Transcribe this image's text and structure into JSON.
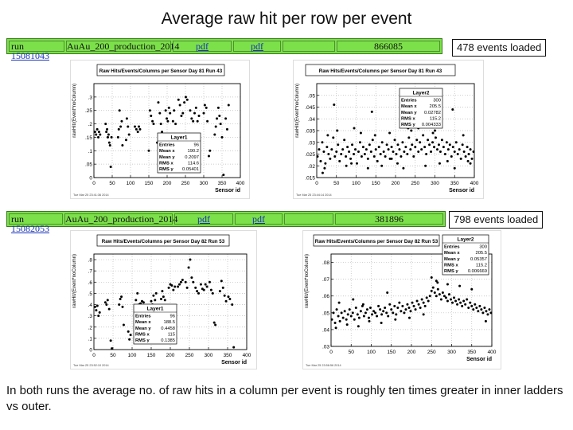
{
  "title": "Average raw hit per row per event",
  "runs": [
    {
      "run_label": "run",
      "run_number": "15081043",
      "dataset": "AuAu_200_production_2014",
      "pdf1": "pdf",
      "pdf2": "pdf",
      "events": "866085",
      "events_loaded": "478 events loaded"
    },
    {
      "run_label": "run",
      "run_number": "15082053",
      "dataset": "AuAu_200_production_2014",
      "pdf1": "pdf",
      "pdf2": "pdf",
      "events": "381896",
      "events_loaded": "798 events loaded"
    }
  ],
  "footer": "In both runs the average no. of raw hits in a column per event is roughly ten times greater in inner ladders vs outer.",
  "colors": {
    "bar_green": "#7ce04a",
    "link_blue": "#1a33b8"
  },
  "chart_data": [
    {
      "type": "scatter",
      "title": "Raw Hits/Events/Columns per Sensor Day 81 Run 43",
      "xlabel": "Sensor id",
      "ylabel": "rawHit/(Event*noColumn)",
      "xlim": [
        0,
        400
      ],
      "ylim": [
        0,
        0.35
      ],
      "xticks": [
        0,
        50,
        100,
        150,
        200,
        250,
        300,
        350,
        400
      ],
      "yticks": [
        0,
        0.05,
        0.1,
        0.15,
        0.2,
        0.25,
        0.3
      ],
      "timestamp": "Tue Mar 25 23:41:36 2014",
      "legend": {
        "name": "Layer1",
        "rows": [
          [
            "Entries",
            "96"
          ],
          [
            "Mean x",
            "190.2"
          ],
          [
            "Mean y",
            "0.2097"
          ],
          [
            "RMS x",
            "114.6"
          ],
          [
            "RMS y",
            "0.05401"
          ]
        ]
      },
      "series": [
        {
          "name": "Layer1",
          "x": [
            3,
            6,
            9,
            12,
            14,
            17,
            32,
            34,
            36,
            38,
            40,
            42,
            44,
            46,
            48,
            66,
            68,
            70,
            73,
            76,
            78,
            88,
            90,
            93,
            96,
            112,
            116,
            120,
            123,
            126,
            150,
            153,
            156,
            160,
            163,
            173,
            176,
            180,
            183,
            186,
            196,
            199,
            202,
            205,
            208,
            212,
            216,
            219,
            223,
            231,
            235,
            239,
            243,
            247,
            251,
            255,
            263,
            267,
            271,
            275,
            279,
            283,
            287,
            300,
            303,
            307,
            310,
            314,
            317,
            330,
            333,
            336,
            340,
            343,
            346,
            350,
            354,
            360,
            364,
            368
          ],
          "y": [
            0.17,
            0.16,
            0.18,
            0.15,
            0.17,
            0.16,
            0.2,
            0.17,
            0.18,
            0.15,
            0.16,
            0.13,
            0.12,
            0.04,
            0.15,
            0.15,
            0.18,
            0.25,
            0.19,
            0.21,
            0.12,
            0.14,
            0.22,
            0.19,
            0.16,
            0.19,
            0.18,
            0.17,
            0.19,
            0.18,
            0.1,
            0.25,
            0.23,
            0.21,
            0.2,
            0.13,
            0.28,
            0.24,
            0.2,
            0.17,
            0.25,
            0.22,
            0.21,
            0.26,
            0.24,
            0.14,
            0.21,
            0.25,
            0.2,
            0.29,
            0.27,
            0.23,
            0.24,
            0.28,
            0.3,
            0.29,
            0.25,
            0.22,
            0.21,
            0.24,
            0.26,
            0.21,
            0.23,
            0.24,
            0.27,
            0.26,
            0.21,
            0.08,
            0.1,
            0.16,
            0.19,
            0.22,
            0.26,
            0.23,
            0.2,
            0.15,
            0.01,
            0.22,
            0.18,
            0.27
          ]
        }
      ]
    },
    {
      "type": "scatter",
      "title": "Raw Hits/Events/Columns per Sensor Day 81 Run 43",
      "xlabel": "Sensor id",
      "ylabel": "rawHit/(Event*noColumn)",
      "xlim": [
        0,
        400
      ],
      "ylim": [
        0.015,
        0.055
      ],
      "xticks": [
        0,
        50,
        100,
        150,
        200,
        250,
        300,
        350,
        400
      ],
      "yticks": [
        0.015,
        0.02,
        0.025,
        0.03,
        0.035,
        0.04,
        0.045,
        0.05
      ],
      "timestamp": "Tue Mar 25 23:44:14 2014",
      "legend": {
        "name": "Layer2",
        "rows": [
          [
            "Entries",
            "300"
          ],
          [
            "Mean x",
            "205.5"
          ],
          [
            "Mean y",
            "0.02782"
          ],
          [
            "RMS x",
            "115.2"
          ],
          [
            "RMS y",
            "0.004333"
          ]
        ]
      },
      "series": [
        {
          "name": "Layer2",
          "x": [
            2,
            6,
            10,
            14,
            18,
            22,
            26,
            30,
            34,
            38,
            42,
            46,
            50,
            54,
            58,
            62,
            66,
            70,
            74,
            78,
            82,
            86,
            90,
            94,
            98,
            102,
            106,
            110,
            114,
            118,
            122,
            126,
            130,
            134,
            138,
            142,
            146,
            150,
            154,
            158,
            162,
            166,
            170,
            174,
            178,
            182,
            186,
            190,
            194,
            198,
            202,
            206,
            210,
            214,
            218,
            222,
            226,
            230,
            234,
            238,
            242,
            246,
            250,
            254,
            258,
            262,
            266,
            270,
            274,
            278,
            282,
            286,
            290,
            294,
            298,
            302,
            306,
            310,
            314,
            318,
            322,
            326,
            330,
            334,
            338,
            342,
            346,
            350,
            354,
            358,
            362,
            366,
            370,
            374,
            378,
            382,
            386,
            390,
            394,
            398,
            20,
            28,
            52,
            75,
            88,
            112,
            130,
            148,
            165,
            185,
            205,
            220,
            240,
            258,
            276,
            295,
            312,
            332,
            350,
            372,
            390,
            15,
            44,
            95,
            140,
            190,
            232,
            268,
            300,
            345,
            384
          ],
          "y": [
            0.024,
            0.027,
            0.022,
            0.03,
            0.026,
            0.021,
            0.028,
            0.025,
            0.023,
            0.027,
            0.032,
            0.024,
            0.026,
            0.029,
            0.022,
            0.025,
            0.027,
            0.031,
            0.024,
            0.028,
            0.026,
            0.023,
            0.029,
            0.025,
            0.027,
            0.021,
            0.026,
            0.03,
            0.024,
            0.028,
            0.025,
            0.027,
            0.023,
            0.029,
            0.026,
            0.031,
            0.024,
            0.027,
            0.022,
            0.028,
            0.025,
            0.03,
            0.026,
            0.024,
            0.029,
            0.027,
            0.023,
            0.028,
            0.026,
            0.031,
            0.025,
            0.029,
            0.027,
            0.024,
            0.03,
            0.026,
            0.028,
            0.025,
            0.032,
            0.027,
            0.029,
            0.024,
            0.028,
            0.031,
            0.026,
            0.03,
            0.027,
            0.033,
            0.028,
            0.025,
            0.031,
            0.029,
            0.026,
            0.03,
            0.028,
            0.032,
            0.027,
            0.029,
            0.026,
            0.031,
            0.028,
            0.025,
            0.03,
            0.027,
            0.029,
            0.024,
            0.028,
            0.026,
            0.03,
            0.025,
            0.027,
            0.023,
            0.029,
            0.026,
            0.024,
            0.028,
            0.025,
            0.027,
            0.023,
            0.026,
            0.019,
            0.033,
            0.035,
            0.02,
            0.021,
            0.034,
            0.019,
            0.033,
            0.02,
            0.034,
            0.021,
            0.019,
            0.035,
            0.036,
            0.02,
            0.034,
            0.021,
            0.022,
            0.019,
            0.033,
            0.021,
            0.017,
            0.046,
            0.036,
            0.043,
            0.023,
            0.036,
            0.04,
            0.035,
            0.044,
            0.022
          ]
        }
      ]
    },
    {
      "type": "scatter",
      "title": "Raw Hits/Events/Columns per Sensor Day 82 Run 53",
      "xlabel": "Sensor id",
      "ylabel": "rawHit/(Event*noColumn)",
      "xlim": [
        0,
        400
      ],
      "ylim": [
        0,
        0.85
      ],
      "xticks": [
        0,
        50,
        100,
        150,
        200,
        250,
        300,
        350,
        400
      ],
      "yticks": [
        0,
        0.1,
        0.2,
        0.3,
        0.4,
        0.5,
        0.6,
        0.7,
        0.8
      ],
      "timestamp": "Tue Mar 25 23:52:10 2014",
      "legend": {
        "name": "Layer1",
        "rows": [
          [
            "Entries",
            "96"
          ],
          [
            "Mean x",
            "188.5"
          ],
          [
            "Mean y",
            "0.4458"
          ],
          [
            "RMS x",
            "115"
          ],
          [
            "RMS y",
            "0.1385"
          ]
        ]
      },
      "series": [
        {
          "name": "Layer1",
          "x": [
            3,
            6,
            9,
            12,
            15,
            30,
            33,
            36,
            40,
            44,
            47,
            66,
            69,
            72,
            75,
            78,
            90,
            93,
            96,
            110,
            114,
            118,
            122,
            126,
            130,
            150,
            153,
            156,
            160,
            163,
            166,
            176,
            179,
            182,
            186,
            196,
            200,
            204,
            208,
            212,
            220,
            224,
            228,
            232,
            240,
            244,
            248,
            252,
            256,
            260,
            266,
            270,
            274,
            280,
            284,
            288,
            292,
            296,
            303,
            307,
            311,
            315,
            318,
            330,
            334,
            338,
            342,
            346,
            352,
            356,
            362,
            366
          ],
          "y": [
            0.38,
            0.35,
            0.39,
            0.3,
            0.33,
            0.42,
            0.4,
            0.44,
            0.36,
            0.08,
            0.01,
            0.4,
            0.45,
            0.47,
            0.38,
            0.22,
            0.16,
            0.09,
            0.13,
            0.44,
            0.5,
            0.4,
            0.41,
            0.43,
            0.42,
            0.43,
            0.4,
            0.48,
            0.44,
            0.5,
            0.38,
            0.45,
            0.52,
            0.47,
            0.44,
            0.55,
            0.58,
            0.57,
            0.53,
            0.56,
            0.56,
            0.58,
            0.6,
            0.62,
            0.6,
            0.55,
            0.73,
            0.8,
            0.64,
            0.6,
            0.55,
            0.52,
            0.5,
            0.58,
            0.54,
            0.53,
            0.58,
            0.56,
            0.6,
            0.53,
            0.5,
            0.24,
            0.22,
            0.52,
            0.61,
            0.55,
            0.48,
            0.43,
            0.47,
            0.45,
            0.4,
            0.02
          ]
        }
      ]
    },
    {
      "type": "scatter",
      "title": "Raw Hits/Events/Columns per Sensor Day 82 Run 53",
      "xlabel": "Sensor id",
      "ylabel": "rawHit/(Event*noColumn)",
      "xlim": [
        0,
        400
      ],
      "ylim": [
        0.03,
        0.085
      ],
      "xticks": [
        0,
        50,
        100,
        150,
        200,
        250,
        300,
        350,
        400
      ],
      "yticks": [
        0.03,
        0.04,
        0.05,
        0.06,
        0.07,
        0.08
      ],
      "timestamp": "Tue Mar 25 23:56:56 2014",
      "legend": {
        "name": "Layer2",
        "rows": [
          [
            "Entries",
            "300"
          ],
          [
            "Mean x",
            "205.5"
          ],
          [
            "Mean y",
            "0.05357"
          ],
          [
            "RMS x",
            "115.2"
          ],
          [
            "RMS y",
            "0.006669"
          ]
        ]
      },
      "series": [
        {
          "name": "Layer2",
          "x": [
            2,
            6,
            10,
            14,
            18,
            22,
            26,
            30,
            34,
            38,
            42,
            46,
            50,
            54,
            58,
            62,
            66,
            70,
            74,
            78,
            82,
            86,
            90,
            94,
            98,
            102,
            106,
            110,
            114,
            118,
            122,
            126,
            130,
            134,
            138,
            142,
            146,
            150,
            154,
            158,
            162,
            166,
            170,
            174,
            178,
            182,
            186,
            190,
            194,
            198,
            202,
            206,
            210,
            214,
            218,
            222,
            226,
            230,
            234,
            238,
            242,
            246,
            250,
            254,
            258,
            262,
            266,
            270,
            274,
            278,
            282,
            286,
            290,
            294,
            298,
            302,
            306,
            310,
            314,
            318,
            322,
            326,
            330,
            334,
            338,
            342,
            346,
            350,
            354,
            358,
            362,
            366,
            370,
            374,
            378,
            382,
            386,
            390,
            394,
            398,
            12,
            40,
            68,
            95,
            125,
            160,
            195,
            230,
            262,
            290,
            320,
            350,
            385,
            20,
            55,
            80,
            140,
            250,
            265,
            280
          ],
          "y": [
            0.046,
            0.05,
            0.044,
            0.052,
            0.048,
            0.045,
            0.05,
            0.047,
            0.051,
            0.046,
            0.049,
            0.052,
            0.048,
            0.05,
            0.046,
            0.053,
            0.049,
            0.047,
            0.051,
            0.054,
            0.048,
            0.05,
            0.052,
            0.047,
            0.053,
            0.049,
            0.051,
            0.05,
            0.048,
            0.054,
            0.052,
            0.049,
            0.051,
            0.053,
            0.05,
            0.048,
            0.055,
            0.052,
            0.05,
            0.054,
            0.049,
            0.053,
            0.056,
            0.051,
            0.054,
            0.05,
            0.052,
            0.055,
            0.053,
            0.051,
            0.056,
            0.054,
            0.052,
            0.057,
            0.055,
            0.053,
            0.058,
            0.056,
            0.054,
            0.059,
            0.057,
            0.06,
            0.063,
            0.065,
            0.062,
            0.06,
            0.064,
            0.061,
            0.058,
            0.062,
            0.06,
            0.059,
            0.057,
            0.061,
            0.058,
            0.056,
            0.059,
            0.057,
            0.055,
            0.058,
            0.056,
            0.054,
            0.057,
            0.055,
            0.058,
            0.053,
            0.056,
            0.054,
            0.052,
            0.055,
            0.053,
            0.051,
            0.054,
            0.052,
            0.05,
            0.053,
            0.051,
            0.049,
            0.052,
            0.05,
            0.041,
            0.043,
            0.042,
            0.045,
            0.044,
            0.046,
            0.047,
            0.049,
            0.069,
            0.067,
            0.066,
            0.064,
            0.045,
            0.056,
            0.058,
            0.055,
            0.062,
            0.071,
            0.068,
            0.074
          ]
        }
      ]
    }
  ]
}
